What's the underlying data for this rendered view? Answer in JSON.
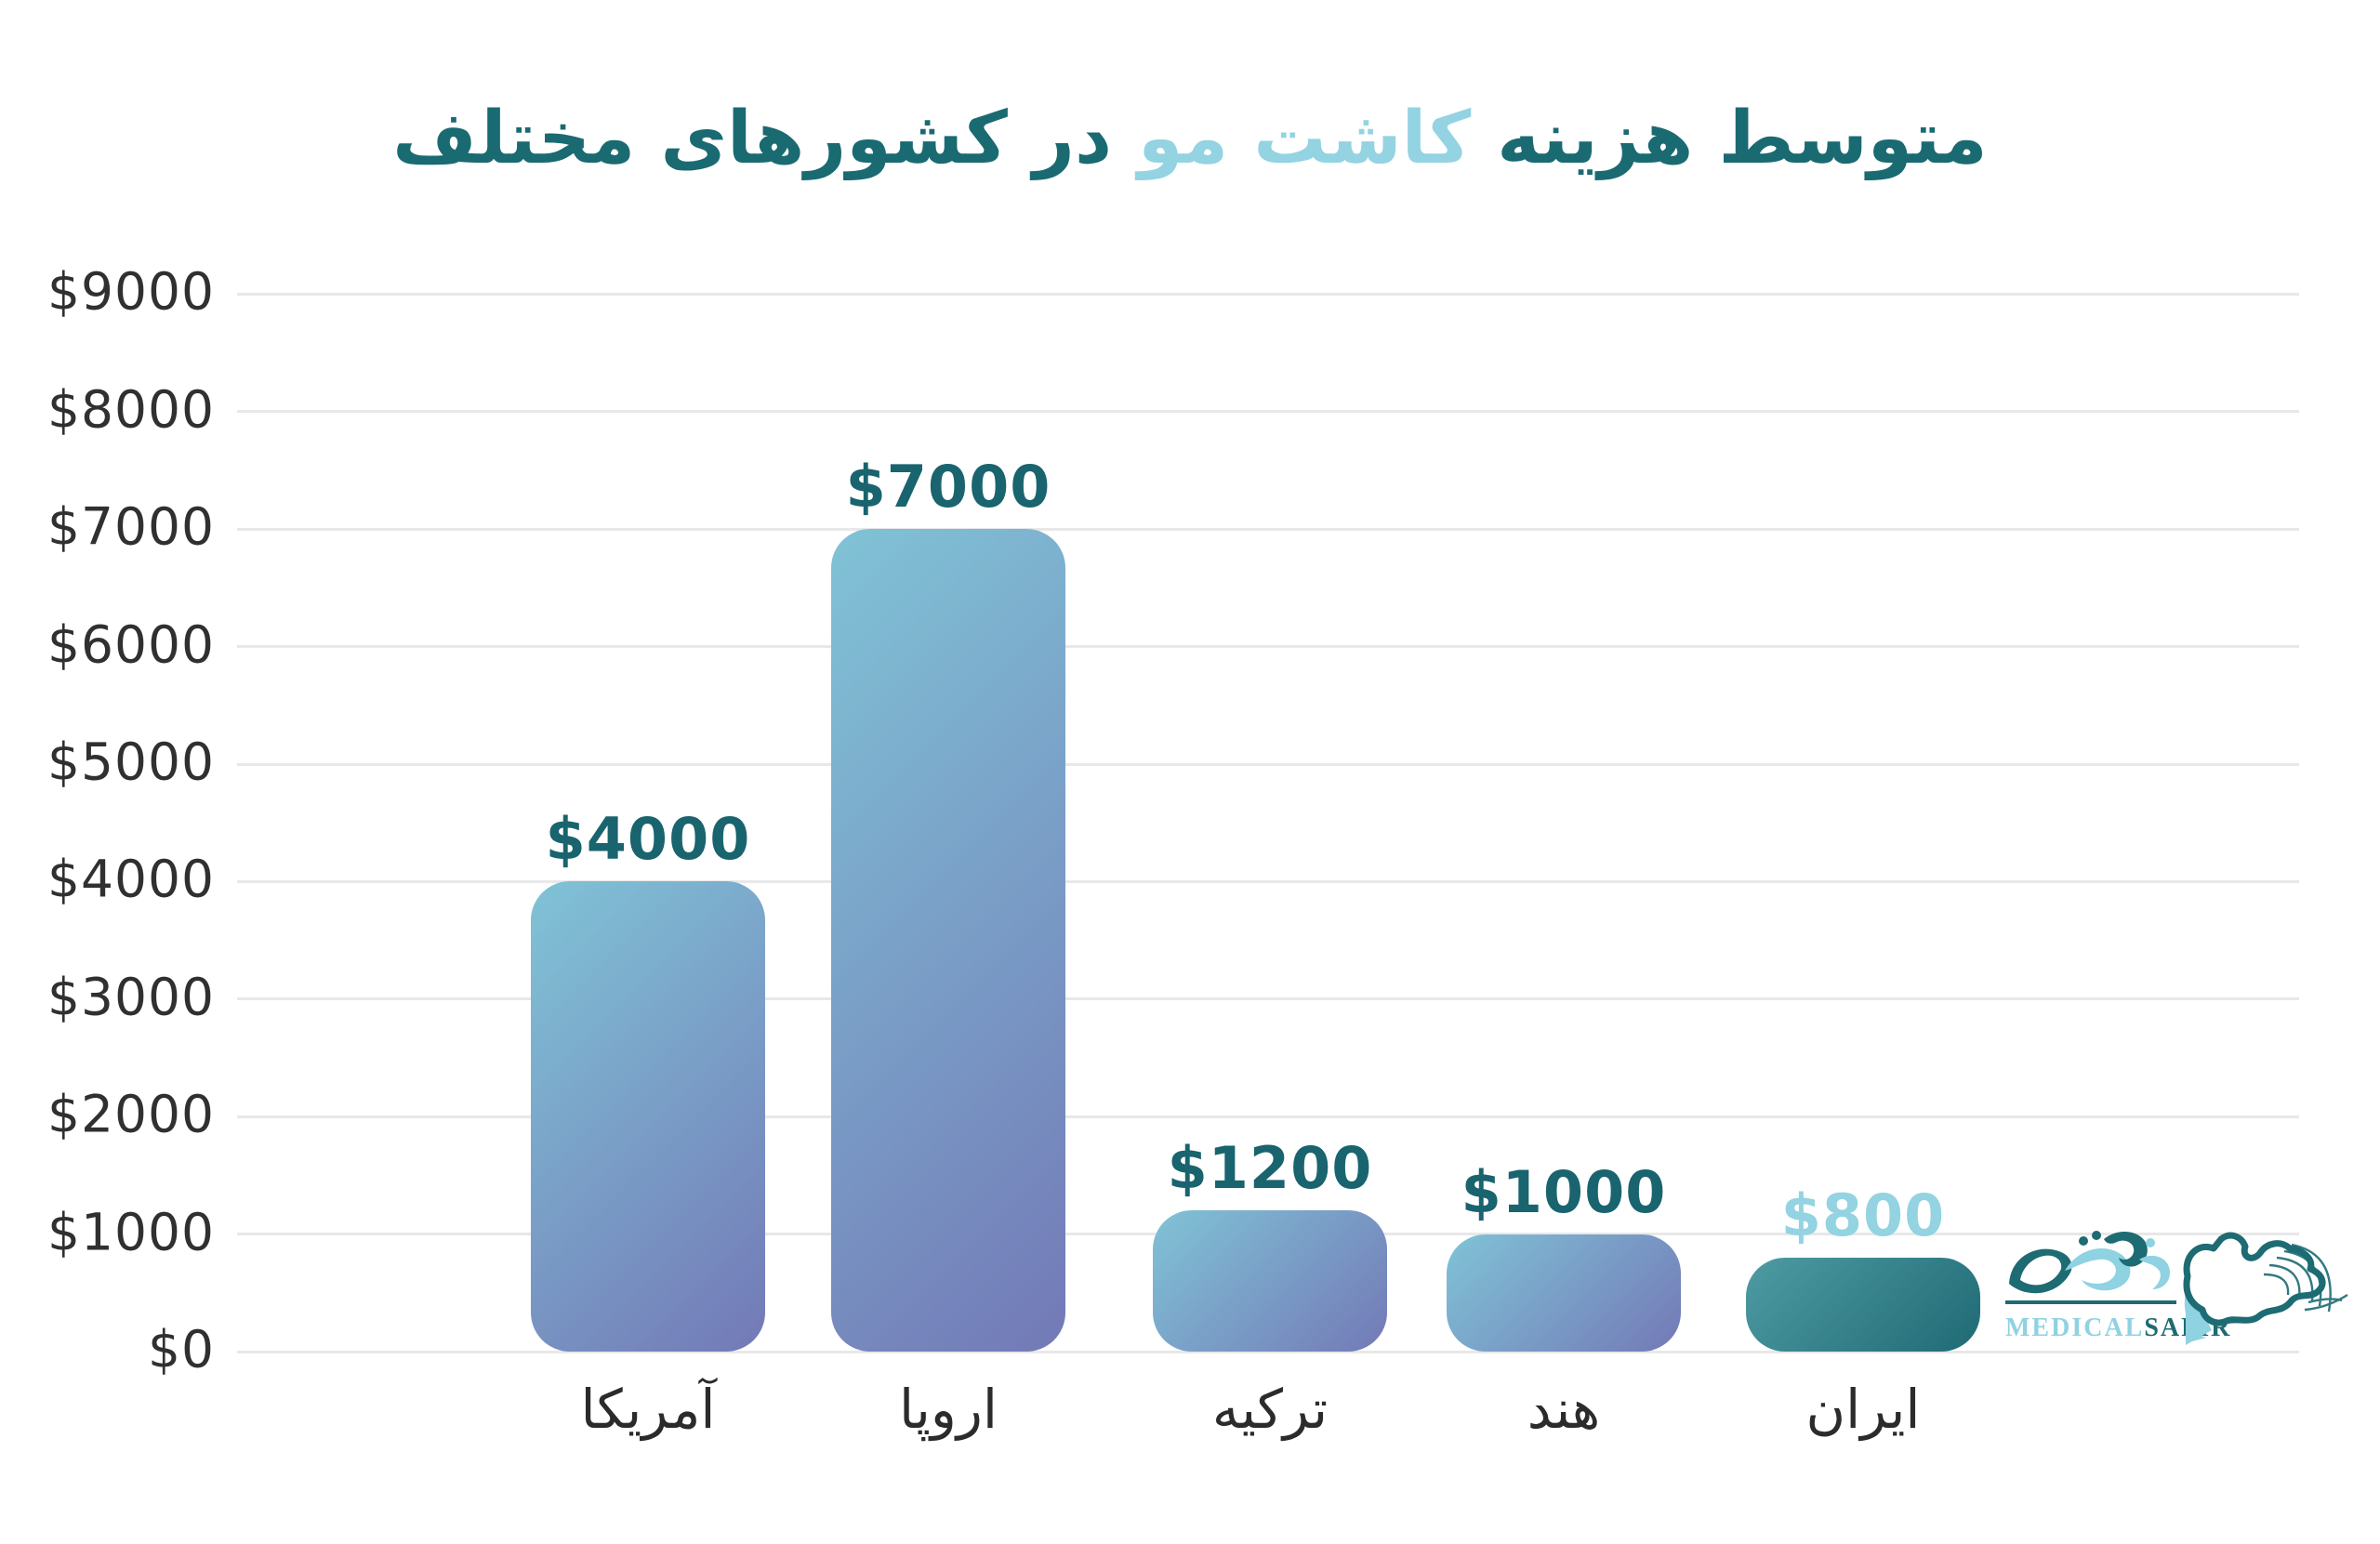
{
  "title": {
    "part1": "متوسط هزینه",
    "part2": "کاشت مو",
    "part3": "در کشورهای مختلف"
  },
  "logo": {
    "medical": "MEDICAL",
    "safir": "SAFIR",
    "calligraphy": "مدیکال سفیر"
  },
  "colors": {
    "title_dark": "#1a6a72",
    "title_light": "#93d3e2",
    "value_label_dark": "#19646e",
    "value_label_light": "#93d3e2",
    "grid": "#e8e8e8",
    "axis_text": "#303030",
    "category_text": "#2b2b2b",
    "bar_gradients": {
      "default": [
        "#80c3d6",
        "#7379b7"
      ],
      "iran": [
        "#4f9ba3",
        "#1f6a74"
      ]
    },
    "logo_teal": "#1d6b73",
    "logo_light": "#8fd2e2"
  },
  "chart_data": {
    "type": "bar",
    "title": "متوسط هزینه کاشت مو در کشورهای مختلف",
    "xlabel": "",
    "ylabel": "",
    "categories": [
      "آمریکا",
      "اروپا",
      "ترکیه",
      "هند",
      "ایران"
    ],
    "keys": [
      "usa",
      "europe",
      "turkey",
      "india",
      "iran"
    ],
    "values": [
      4000,
      7000,
      1200,
      1000,
      800
    ],
    "value_labels": [
      "$4000",
      "$7000",
      "$1200",
      "$1000",
      "$800"
    ],
    "bar_styles": [
      "default",
      "default",
      "default",
      "default",
      "iran"
    ],
    "ylim": [
      0,
      9000
    ],
    "ytick_step": 1000,
    "ytick_labels": [
      "$0",
      "$1000",
      "$2000",
      "$3000",
      "$4000",
      "$5000",
      "$6000",
      "$7000",
      "$8000",
      "$9000"
    ],
    "grid": true,
    "legend": false
  }
}
